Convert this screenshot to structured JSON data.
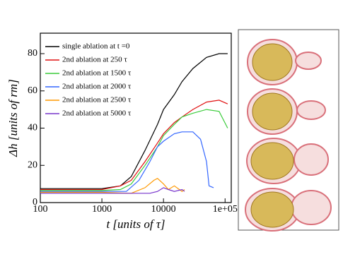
{
  "chart_data": {
    "type": "line",
    "xlabel": "t [units of τ]",
    "ylabel": "Δh [units of rm]",
    "xscale": "log",
    "xlim": [
      100,
      126000
    ],
    "ylim": [
      0,
      91
    ],
    "xticks": [
      100,
      1000,
      10000,
      {
        "value": 100000,
        "label": "1e+05"
      }
    ],
    "yticks": [
      0,
      20,
      40,
      60,
      80
    ],
    "legend": "upper left",
    "series": [
      {
        "name": "single ablation at t =0",
        "color": "#000000",
        "x": [
          100,
          300,
          1000,
          2000,
          3000,
          5000,
          8000,
          10000,
          15000,
          20000,
          30000,
          50000,
          80000,
          110000
        ],
        "values": [
          7.5,
          7.5,
          7.5,
          9,
          14,
          28,
          42,
          50,
          58,
          65,
          72,
          78,
          80,
          80
        ]
      },
      {
        "name": "2nd ablation at 250 τ",
        "color": "#e01010",
        "x": [
          100,
          300,
          1000,
          2000,
          3000,
          5000,
          8000,
          10000,
          15000,
          20000,
          30000,
          50000,
          80000,
          110000
        ],
        "values": [
          7,
          7,
          7,
          9,
          12,
          22,
          32,
          37,
          43,
          46,
          50,
          54,
          55,
          53
        ]
      },
      {
        "name": "2nd ablation at 1500 τ",
        "color": "#3ccc3c",
        "x": [
          100,
          300,
          1000,
          2000,
          3000,
          5000,
          8000,
          10000,
          15000,
          20000,
          30000,
          50000,
          80000,
          110000
        ],
        "values": [
          6.5,
          6.5,
          6.5,
          7,
          10,
          20,
          30,
          36,
          42,
          46,
          48,
          50,
          49,
          40
        ]
      },
      {
        "name": "2nd ablation at 2000 τ",
        "color": "#3366ff",
        "x": [
          100,
          300,
          1000,
          2500,
          4000,
          6000,
          8000,
          10000,
          15000,
          20000,
          30000,
          40000,
          50000,
          55000,
          65000
        ],
        "values": [
          6,
          6,
          6,
          6,
          12,
          22,
          30,
          33,
          37,
          38,
          38,
          34,
          22,
          9,
          8
        ]
      },
      {
        "name": "2nd ablation at 2500 τ",
        "color": "#ff9900",
        "x": [
          100,
          300,
          1000,
          3000,
          5000,
          7000,
          8000,
          10000,
          12000,
          15000,
          20000,
          22000
        ],
        "values": [
          5.5,
          5.5,
          5.5,
          5,
          8,
          12,
          13,
          10,
          7,
          9,
          6,
          7
        ]
      },
      {
        "name": "2nd ablation at 5000 τ",
        "color": "#7733cc",
        "x": [
          100,
          300,
          1000,
          3000,
          6000,
          8000,
          10000,
          12000,
          15000,
          20000,
          22000
        ],
        "values": [
          5,
          5,
          5,
          5,
          5,
          6,
          8,
          7,
          6,
          7,
          6
        ]
      }
    ]
  }
}
